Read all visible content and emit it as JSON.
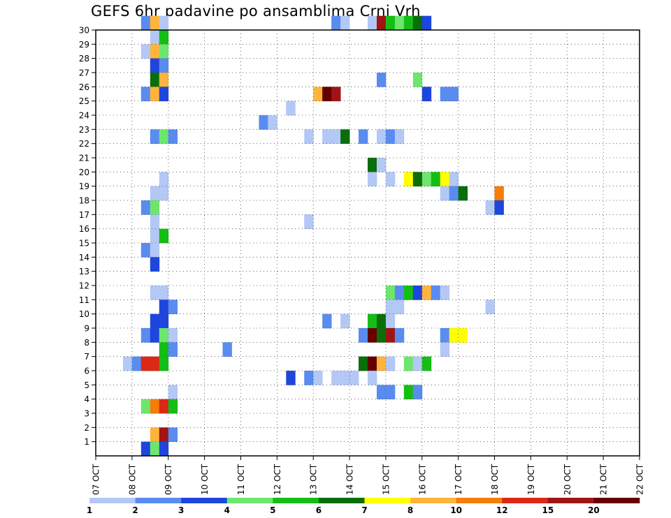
{
  "chart_data": {
    "type": "heatmap",
    "title": "GEFS 6hr padavine po ansamblima Crni Vrh",
    "x_tick_labels": [
      "07 OCT",
      "08 OCT",
      "09 OCT",
      "10 OCT",
      "11 OCT",
      "12 OCT",
      "13 OCT",
      "14 OCT",
      "15 OCT",
      "16 OCT",
      "17 OCT",
      "18 OCT",
      "19 OCT",
      "20 OCT",
      "21 OCT",
      "22 OCT"
    ],
    "x_range_days": [
      0,
      15
    ],
    "step_hours": 6,
    "y_tick_labels": [
      "1",
      "2",
      "3",
      "4",
      "5",
      "6",
      "7",
      "8",
      "9",
      "10",
      "11",
      "12",
      "13",
      "14",
      "15",
      "16",
      "17",
      "18",
      "19",
      "20",
      "21",
      "22",
      "23",
      "24",
      "25",
      "26",
      "27",
      "28",
      "29",
      "30"
    ],
    "y_range_members": [
      0,
      30
    ],
    "grid": "dotted",
    "colorbar": {
      "colors": [
        "#b4c8f5",
        "#5a8cf0",
        "#1e46dc",
        "#6ee66e",
        "#14be14",
        "#0a6e0a",
        "#ffff00",
        "#ffb43c",
        "#f57d0a",
        "#dc2814",
        "#a01414",
        "#640000"
      ],
      "labels": [
        "1",
        "2",
        "3",
        "4",
        "5",
        "6",
        "7",
        "8",
        "10",
        "12",
        "15",
        "20"
      ]
    },
    "cells": [
      [
        30,
        5,
        1
      ],
      [
        30,
        6,
        7
      ],
      [
        30,
        7,
        0
      ],
      [
        30,
        26,
        1
      ],
      [
        30,
        27,
        0
      ],
      [
        30,
        30,
        0
      ],
      [
        30,
        31,
        10
      ],
      [
        30,
        32,
        4
      ],
      [
        30,
        33,
        3
      ],
      [
        30,
        34,
        4
      ],
      [
        30,
        35,
        5
      ],
      [
        30,
        36,
        2
      ],
      [
        29,
        6,
        0
      ],
      [
        29,
        7,
        4
      ],
      [
        28,
        5,
        0
      ],
      [
        28,
        6,
        7
      ],
      [
        28,
        7,
        3
      ],
      [
        27,
        6,
        2
      ],
      [
        27,
        7,
        1
      ],
      [
        26,
        6,
        5
      ],
      [
        26,
        7,
        7
      ],
      [
        26,
        31,
        1
      ],
      [
        26,
        35,
        3
      ],
      [
        25,
        5,
        1
      ],
      [
        25,
        6,
        7
      ],
      [
        25,
        7,
        2
      ],
      [
        25,
        24,
        7
      ],
      [
        25,
        25,
        11
      ],
      [
        25,
        26,
        10
      ],
      [
        25,
        36,
        2
      ],
      [
        25,
        38,
        1
      ],
      [
        25,
        39,
        1
      ],
      [
        24,
        21,
        0
      ],
      [
        23,
        18,
        1
      ],
      [
        23,
        19,
        0
      ],
      [
        22,
        6,
        1
      ],
      [
        22,
        7,
        3
      ],
      [
        22,
        8,
        1
      ],
      [
        22,
        23,
        0
      ],
      [
        22,
        25,
        0
      ],
      [
        22,
        26,
        0
      ],
      [
        22,
        27,
        5
      ],
      [
        22,
        29,
        1
      ],
      [
        22,
        31,
        0
      ],
      [
        22,
        32,
        1
      ],
      [
        22,
        33,
        0
      ],
      [
        20,
        30,
        5
      ],
      [
        20,
        31,
        0
      ],
      [
        19,
        7,
        0
      ],
      [
        19,
        30,
        0
      ],
      [
        19,
        32,
        0
      ],
      [
        19,
        34,
        6
      ],
      [
        19,
        35,
        5
      ],
      [
        19,
        36,
        3
      ],
      [
        19,
        37,
        4
      ],
      [
        19,
        38,
        6
      ],
      [
        19,
        39,
        0
      ],
      [
        18,
        6,
        0
      ],
      [
        18,
        7,
        0
      ],
      [
        18,
        38,
        0
      ],
      [
        18,
        39,
        1
      ],
      [
        18,
        40,
        5
      ],
      [
        18,
        44,
        8
      ],
      [
        17,
        5,
        1
      ],
      [
        17,
        6,
        3
      ],
      [
        17,
        43,
        0
      ],
      [
        17,
        44,
        2
      ],
      [
        16,
        6,
        0
      ],
      [
        16,
        23,
        0
      ],
      [
        15,
        6,
        0
      ],
      [
        15,
        7,
        4
      ],
      [
        14,
        5,
        1
      ],
      [
        14,
        6,
        0
      ],
      [
        13,
        6,
        2
      ],
      [
        11,
        6,
        0
      ],
      [
        11,
        7,
        0
      ],
      [
        11,
        32,
        3
      ],
      [
        11,
        33,
        1
      ],
      [
        11,
        34,
        4
      ],
      [
        11,
        35,
        2
      ],
      [
        11,
        36,
        7
      ],
      [
        11,
        37,
        1
      ],
      [
        11,
        38,
        0
      ],
      [
        10,
        7,
        2
      ],
      [
        10,
        8,
        1
      ],
      [
        10,
        32,
        0
      ],
      [
        10,
        33,
        0
      ],
      [
        10,
        43,
        0
      ],
      [
        9,
        6,
        2
      ],
      [
        9,
        7,
        2
      ],
      [
        9,
        25,
        1
      ],
      [
        9,
        27,
        0
      ],
      [
        9,
        30,
        4
      ],
      [
        9,
        31,
        5
      ],
      [
        9,
        32,
        0
      ],
      [
        8,
        5,
        1
      ],
      [
        8,
        6,
        2
      ],
      [
        8,
        7,
        3
      ],
      [
        8,
        8,
        0
      ],
      [
        8,
        29,
        1
      ],
      [
        8,
        30,
        11
      ],
      [
        8,
        31,
        5
      ],
      [
        8,
        32,
        10
      ],
      [
        8,
        33,
        1
      ],
      [
        8,
        38,
        1
      ],
      [
        8,
        39,
        6
      ],
      [
        8,
        40,
        6
      ],
      [
        7,
        7,
        4
      ],
      [
        7,
        8,
        1
      ],
      [
        7,
        14,
        1
      ],
      [
        7,
        38,
        0
      ],
      [
        6,
        3,
        0
      ],
      [
        6,
        4,
        1
      ],
      [
        6,
        5,
        9
      ],
      [
        6,
        6,
        9
      ],
      [
        6,
        7,
        4
      ],
      [
        6,
        29,
        5
      ],
      [
        6,
        30,
        11
      ],
      [
        6,
        31,
        7
      ],
      [
        6,
        32,
        0
      ],
      [
        6,
        34,
        3
      ],
      [
        6,
        35,
        0
      ],
      [
        6,
        36,
        4
      ],
      [
        5,
        21,
        2
      ],
      [
        5,
        23,
        1
      ],
      [
        5,
        24,
        0
      ],
      [
        5,
        26,
        0
      ],
      [
        5,
        27,
        0
      ],
      [
        5,
        28,
        0
      ],
      [
        5,
        30,
        0
      ],
      [
        4,
        8,
        0
      ],
      [
        4,
        31,
        1
      ],
      [
        4,
        32,
        1
      ],
      [
        4,
        34,
        4
      ],
      [
        4,
        35,
        1
      ],
      [
        3,
        5,
        3
      ],
      [
        3,
        6,
        8
      ],
      [
        3,
        7,
        9
      ],
      [
        3,
        8,
        4
      ],
      [
        1,
        6,
        7
      ],
      [
        1,
        7,
        10
      ],
      [
        1,
        8,
        1
      ],
      [
        0,
        5,
        2
      ],
      [
        0,
        6,
        3
      ],
      [
        0,
        7,
        2
      ]
    ]
  }
}
